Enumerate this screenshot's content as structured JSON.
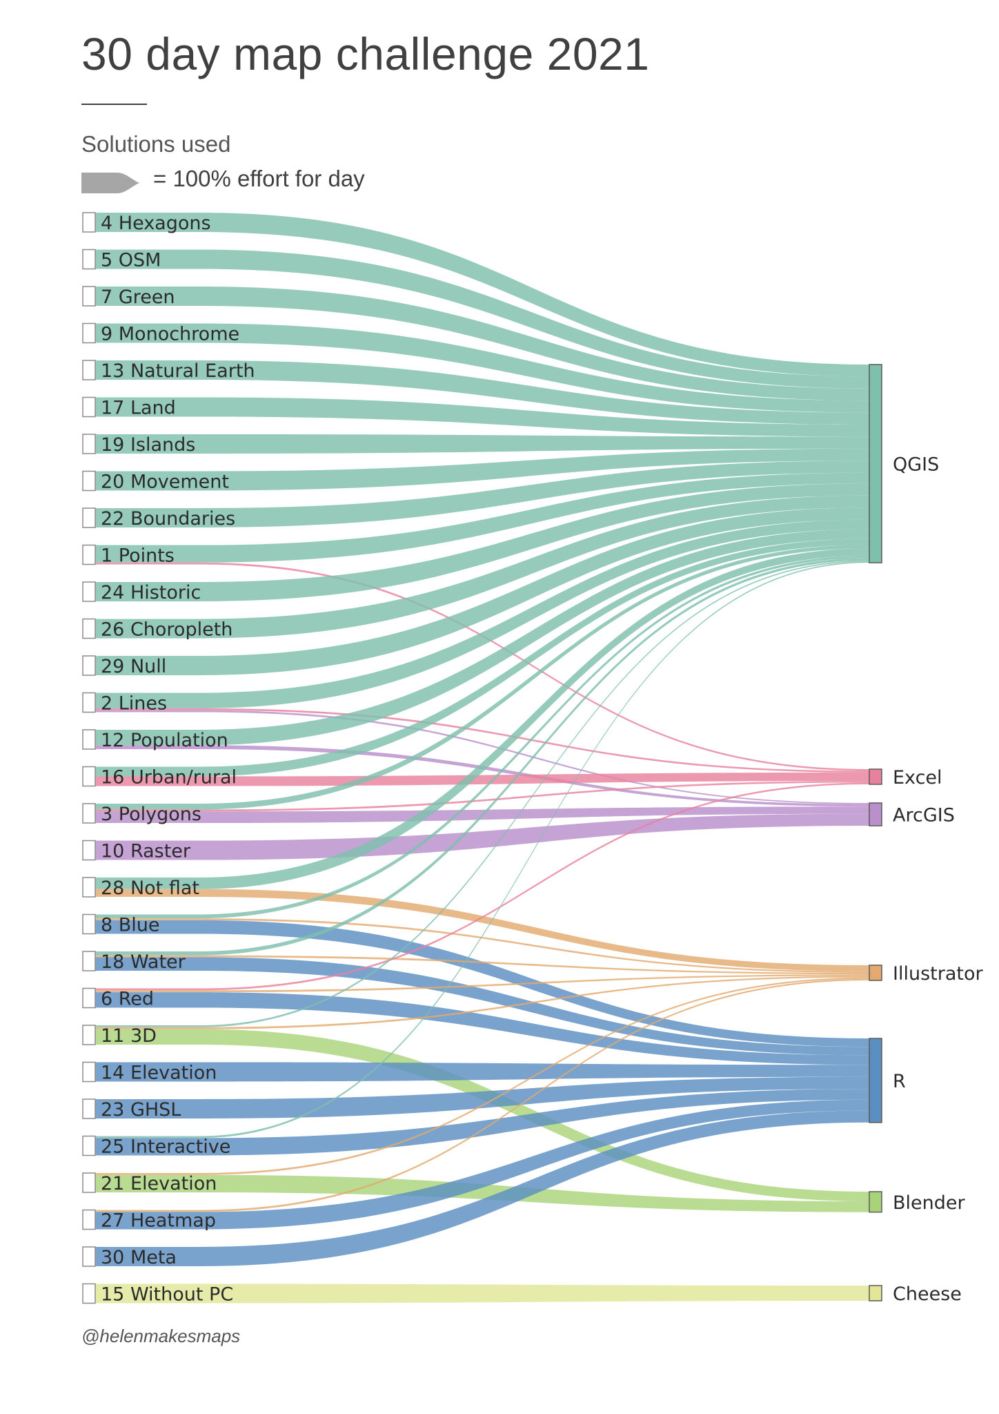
{
  "title": "30 day map challenge 2021",
  "subtitle": "Solutions used",
  "legend": {
    "text": "= 100% effort for day",
    "shape_color": "#a6a6a6"
  },
  "credit": "@helenmakesmaps",
  "chart_data": {
    "type": "sankey",
    "title": "30 day map challenge 2021",
    "subtitle": "Solutions used",
    "unit_note": "= 100% effort for day",
    "days": [
      "4 Hexagons",
      "5 OSM",
      "7 Green",
      "9 Monochrome",
      "13 Natural Earth",
      "17 Land",
      "19 Islands",
      "20 Movement",
      "22 Boundaries",
      "1 Points",
      "24 Historic",
      "26 Choropleth",
      "29 Null",
      "2 Lines",
      "12 Population",
      "16 Urban/rural",
      "3 Polygons",
      "10 Raster",
      "28 Not flat",
      "8 Blue",
      "18 Water",
      "6 Red",
      "11 3D",
      "14 Elevation",
      "23 GHSL",
      "25 Interactive",
      "21 Elevation",
      "27 Heatmap",
      "30 Meta",
      "15 Without PC"
    ],
    "tools": [
      {
        "name": "QGIS",
        "color": "#7fc0ad"
      },
      {
        "name": "Excel",
        "color": "#e8819d"
      },
      {
        "name": "ArcGIS",
        "color": "#b98fcc"
      },
      {
        "name": "Illustrator",
        "color": "#e3a96f"
      },
      {
        "name": "R",
        "color": "#5b8fc2"
      },
      {
        "name": "Blender",
        "color": "#a9d37a"
      },
      {
        "name": "Cheese",
        "color": "#e2e696"
      }
    ],
    "links": [
      {
        "day": "4 Hexagons",
        "tool": "QGIS",
        "effort": 1.0
      },
      {
        "day": "5 OSM",
        "tool": "QGIS",
        "effort": 1.0
      },
      {
        "day": "7 Green",
        "tool": "QGIS",
        "effort": 1.0
      },
      {
        "day": "9 Monochrome",
        "tool": "QGIS",
        "effort": 1.0
      },
      {
        "day": "13 Natural Earth",
        "tool": "QGIS",
        "effort": 1.0
      },
      {
        "day": "17 Land",
        "tool": "QGIS",
        "effort": 1.0
      },
      {
        "day": "19 Islands",
        "tool": "QGIS",
        "effort": 1.0
      },
      {
        "day": "20 Movement",
        "tool": "QGIS",
        "effort": 1.0
      },
      {
        "day": "22 Boundaries",
        "tool": "QGIS",
        "effort": 1.0
      },
      {
        "day": "1 Points",
        "tool": "QGIS",
        "effort": 0.9
      },
      {
        "day": "1 Points",
        "tool": "Excel",
        "effort": 0.1
      },
      {
        "day": "24 Historic",
        "tool": "QGIS",
        "effort": 1.0
      },
      {
        "day": "26 Choropleth",
        "tool": "QGIS",
        "effort": 1.0
      },
      {
        "day": "29 Null",
        "tool": "QGIS",
        "effort": 1.0
      },
      {
        "day": "2 Lines",
        "tool": "QGIS",
        "effort": 0.8
      },
      {
        "day": "2 Lines",
        "tool": "Excel",
        "effort": 0.1
      },
      {
        "day": "2 Lines",
        "tool": "ArcGIS",
        "effort": 0.1
      },
      {
        "day": "12 Population",
        "tool": "QGIS",
        "effort": 0.8
      },
      {
        "day": "12 Population",
        "tool": "ArcGIS",
        "effort": 0.2
      },
      {
        "day": "16 Urban/rural",
        "tool": "QGIS",
        "effort": 0.5
      },
      {
        "day": "16 Urban/rural",
        "tool": "Excel",
        "effort": 0.5
      },
      {
        "day": "3 Polygons",
        "tool": "QGIS",
        "effort": 0.3
      },
      {
        "day": "3 Polygons",
        "tool": "Excel",
        "effort": 0.1
      },
      {
        "day": "3 Polygons",
        "tool": "ArcGIS",
        "effort": 0.6
      },
      {
        "day": "10 Raster",
        "tool": "ArcGIS",
        "effort": 1.0
      },
      {
        "day": "28 Not flat",
        "tool": "QGIS",
        "effort": 0.6
      },
      {
        "day": "28 Not flat",
        "tool": "Illustrator",
        "effort": 0.4
      },
      {
        "day": "8 Blue",
        "tool": "QGIS",
        "effort": 0.2
      },
      {
        "day": "8 Blue",
        "tool": "Illustrator",
        "effort": 0.1
      },
      {
        "day": "8 Blue",
        "tool": "R",
        "effort": 0.7
      },
      {
        "day": "18 Water",
        "tool": "QGIS",
        "effort": 0.2
      },
      {
        "day": "18 Water",
        "tool": "Illustrator",
        "effort": 0.1
      },
      {
        "day": "18 Water",
        "tool": "R",
        "effort": 0.7
      },
      {
        "day": "6 Red",
        "tool": "Excel",
        "effort": 0.1
      },
      {
        "day": "6 Red",
        "tool": "Illustrator",
        "effort": 0.1
      },
      {
        "day": "6 Red",
        "tool": "R",
        "effort": 0.8
      },
      {
        "day": "11 3D",
        "tool": "QGIS",
        "effort": 0.1
      },
      {
        "day": "11 3D",
        "tool": "Illustrator",
        "effort": 0.1
      },
      {
        "day": "11 3D",
        "tool": "Blender",
        "effort": 0.8
      },
      {
        "day": "14 Elevation",
        "tool": "R",
        "effort": 1.0
      },
      {
        "day": "23 GHSL",
        "tool": "R",
        "effort": 1.0
      },
      {
        "day": "25 Interactive",
        "tool": "QGIS",
        "effort": 0.1
      },
      {
        "day": "25 Interactive",
        "tool": "R",
        "effort": 0.9
      },
      {
        "day": "21 Elevation",
        "tool": "Illustrator",
        "effort": 0.1
      },
      {
        "day": "21 Elevation",
        "tool": "Blender",
        "effort": 0.9
      },
      {
        "day": "27 Heatmap",
        "tool": "Illustrator",
        "effort": 0.1
      },
      {
        "day": "27 Heatmap",
        "tool": "R",
        "effort": 0.9
      },
      {
        "day": "30 Meta",
        "tool": "R",
        "effort": 1.0
      },
      {
        "day": "15 Without PC",
        "tool": "Cheese",
        "effort": 1.0
      }
    ]
  }
}
